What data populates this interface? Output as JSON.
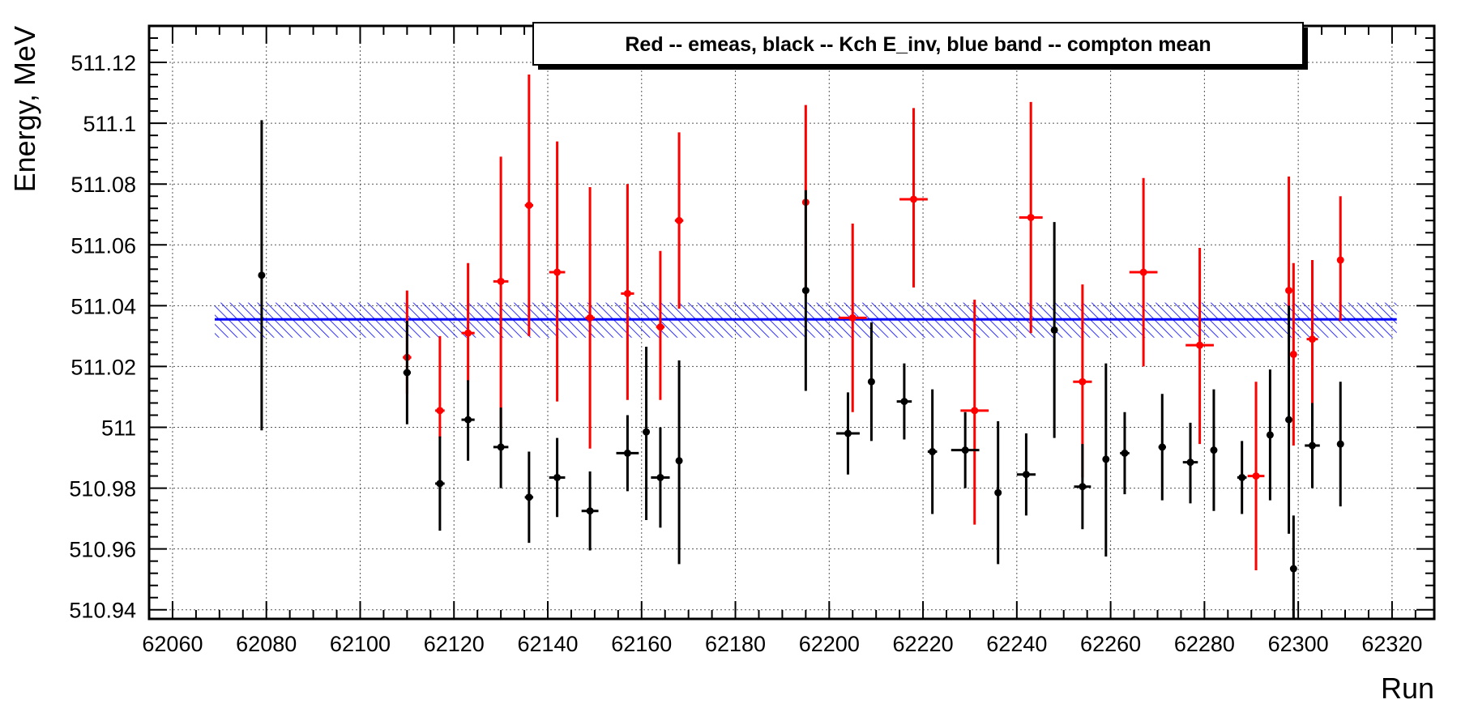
{
  "chart_data": {
    "type": "scatter",
    "xlabel": "Run",
    "ylabel": "Energy, MeV",
    "xlim": [
      62055,
      62329
    ],
    "ylim": [
      510.937,
      511.132
    ],
    "x_ticks": [
      "62060",
      "62080",
      "62100",
      "62120",
      "62140",
      "62160",
      "62180",
      "62200",
      "62220",
      "62240",
      "62260",
      "62280",
      "62300",
      "62320"
    ],
    "y_ticks": [
      "510.94",
      "510.96",
      "510.98",
      "511",
      "511.02",
      "511.04",
      "511.06",
      "511.08",
      "511.1",
      "511.12"
    ],
    "grid": true,
    "legend": {
      "text": "Red -- emeas, black -- Kch E_inv, blue band -- compton mean",
      "placement": "top-right"
    },
    "band": {
      "x_range": [
        62069,
        62321
      ],
      "mean": 511.0355,
      "low": 511.0295,
      "high": 511.041,
      "color": "#0000ff"
    },
    "series": [
      {
        "color": "#ff0000",
        "points": [
          {
            "x": 62110,
            "y": 511.023,
            "xerr": 0.9,
            "yerr_low": 0.012,
            "yerr_high": 0.022
          },
          {
            "x": 62117,
            "y": 511.0055,
            "xerr": 1.0,
            "yerr_low": 0.009,
            "yerr_high": 0.0245
          },
          {
            "x": 62123,
            "y": 511.031,
            "xerr": 1.4,
            "yerr_low": 0.016,
            "yerr_high": 0.023
          },
          {
            "x": 62130,
            "y": 511.048,
            "xerr": 1.6,
            "yerr_low": 0.048,
            "yerr_high": 0.041
          },
          {
            "x": 62136,
            "y": 511.073,
            "xerr": 0.9,
            "yerr_low": 0.043,
            "yerr_high": 0.043
          },
          {
            "x": 62142,
            "y": 511.051,
            "xerr": 1.7,
            "yerr_low": 0.0425,
            "yerr_high": 0.043
          },
          {
            "x": 62149,
            "y": 511.036,
            "xerr": 1.0,
            "yerr_low": 0.043,
            "yerr_high": 0.043
          },
          {
            "x": 62157,
            "y": 511.044,
            "xerr": 1.4,
            "yerr_low": 0.035,
            "yerr_high": 0.036
          },
          {
            "x": 62164,
            "y": 511.033,
            "xerr": 0.9,
            "yerr_low": 0.024,
            "yerr_high": 0.025
          },
          {
            "x": 62168,
            "y": 511.068,
            "xerr": 0.9,
            "yerr_low": 0.029,
            "yerr_high": 0.029
          },
          {
            "x": 62195,
            "y": 511.074,
            "xerr": 0.6,
            "yerr_low": 0.031,
            "yerr_high": 0.032
          },
          {
            "x": 62205,
            "y": 511.036,
            "xerr": 3.0,
            "yerr_low": 0.031,
            "yerr_high": 0.031
          },
          {
            "x": 62218,
            "y": 511.075,
            "xerr": 3.0,
            "yerr_low": 0.029,
            "yerr_high": 0.03
          },
          {
            "x": 62231,
            "y": 511.0055,
            "xerr": 3.0,
            "yerr_low": 0.0375,
            "yerr_high": 0.0365
          },
          {
            "x": 62243,
            "y": 511.069,
            "xerr": 2.5,
            "yerr_low": 0.038,
            "yerr_high": 0.038
          },
          {
            "x": 62254,
            "y": 511.015,
            "xerr": 2.0,
            "yerr_low": 0.0315,
            "yerr_high": 0.032
          },
          {
            "x": 62267,
            "y": 511.051,
            "xerr": 3.0,
            "yerr_low": 0.031,
            "yerr_high": 0.031
          },
          {
            "x": 62279,
            "y": 511.027,
            "xerr": 3.0,
            "yerr_low": 0.0325,
            "yerr_high": 0.032
          },
          {
            "x": 62291,
            "y": 510.984,
            "xerr": 1.8,
            "yerr_low": 0.031,
            "yerr_high": 0.031
          },
          {
            "x": 62298,
            "y": 511.045,
            "xerr": 0.3,
            "yerr_low": 0.017,
            "yerr_high": 0.0375
          },
          {
            "x": 62299,
            "y": 511.024,
            "xerr": 0.3,
            "yerr_low": 0.03,
            "yerr_high": 0.03
          },
          {
            "x": 62303,
            "y": 511.029,
            "xerr": 1.2,
            "yerr_low": 0.021,
            "yerr_high": 0.026
          },
          {
            "x": 62309,
            "y": 511.055,
            "xerr": 0.4,
            "yerr_low": 0.02,
            "yerr_high": 0.021
          }
        ]
      },
      {
        "color": "#000000",
        "points": [
          {
            "x": 62079,
            "y": 511.05,
            "xerr": 0.3,
            "yerr_low": 0.051,
            "yerr_high": 0.051
          },
          {
            "x": 62110,
            "y": 511.018,
            "xerr": 0.8,
            "yerr_low": 0.017,
            "yerr_high": 0.017
          },
          {
            "x": 62117,
            "y": 510.9815,
            "xerr": 1.0,
            "yerr_low": 0.0155,
            "yerr_high": 0.0155
          },
          {
            "x": 62123,
            "y": 511.0025,
            "xerr": 1.4,
            "yerr_low": 0.0135,
            "yerr_high": 0.013
          },
          {
            "x": 62130,
            "y": 510.9935,
            "xerr": 1.6,
            "yerr_low": 0.0135,
            "yerr_high": 0.013
          },
          {
            "x": 62136,
            "y": 510.977,
            "xerr": 0.9,
            "yerr_low": 0.015,
            "yerr_high": 0.015
          },
          {
            "x": 62142,
            "y": 510.9835,
            "xerr": 1.7,
            "yerr_low": 0.013,
            "yerr_high": 0.013
          },
          {
            "x": 62149,
            "y": 510.9725,
            "xerr": 1.8,
            "yerr_low": 0.013,
            "yerr_high": 0.013
          },
          {
            "x": 62157,
            "y": 510.9915,
            "xerr": 2.4,
            "yerr_low": 0.0125,
            "yerr_high": 0.0125
          },
          {
            "x": 62161,
            "y": 510.9985,
            "xerr": 0.3,
            "yerr_low": 0.029,
            "yerr_high": 0.028
          },
          {
            "x": 62164,
            "y": 510.9835,
            "xerr": 2.0,
            "yerr_low": 0.0165,
            "yerr_high": 0.0165
          },
          {
            "x": 62168,
            "y": 510.989,
            "xerr": 0.3,
            "yerr_low": 0.034,
            "yerr_high": 0.033
          },
          {
            "x": 62195,
            "y": 511.045,
            "xerr": 0.3,
            "yerr_low": 0.033,
            "yerr_high": 0.033
          },
          {
            "x": 62204,
            "y": 510.998,
            "xerr": 2.5,
            "yerr_low": 0.0135,
            "yerr_high": 0.0135
          },
          {
            "x": 62209,
            "y": 511.015,
            "xerr": 0.6,
            "yerr_low": 0.0195,
            "yerr_high": 0.0195
          },
          {
            "x": 62216,
            "y": 511.0085,
            "xerr": 1.6,
            "yerr_low": 0.0125,
            "yerr_high": 0.0125
          },
          {
            "x": 62222,
            "y": 510.992,
            "xerr": 1.0,
            "yerr_low": 0.0205,
            "yerr_high": 0.0205
          },
          {
            "x": 62229,
            "y": 510.9925,
            "xerr": 3.0,
            "yerr_low": 0.0125,
            "yerr_high": 0.0125
          },
          {
            "x": 62236,
            "y": 510.9785,
            "xerr": 0.3,
            "yerr_low": 0.0235,
            "yerr_high": 0.0235
          },
          {
            "x": 62242,
            "y": 510.9845,
            "xerr": 2.0,
            "yerr_low": 0.0135,
            "yerr_high": 0.0135
          },
          {
            "x": 62248,
            "y": 511.032,
            "xerr": 0.3,
            "yerr_low": 0.0355,
            "yerr_high": 0.0355
          },
          {
            "x": 62254,
            "y": 510.9805,
            "xerr": 1.8,
            "yerr_low": 0.014,
            "yerr_high": 0.014
          },
          {
            "x": 62259,
            "y": 510.9895,
            "xerr": 0.3,
            "yerr_low": 0.032,
            "yerr_high": 0.0315
          },
          {
            "x": 62263,
            "y": 510.9915,
            "xerr": 1.0,
            "yerr_low": 0.0135,
            "yerr_high": 0.0135
          },
          {
            "x": 62271,
            "y": 510.9935,
            "xerr": 0.8,
            "yerr_low": 0.0175,
            "yerr_high": 0.0175
          },
          {
            "x": 62277,
            "y": 510.9885,
            "xerr": 1.6,
            "yerr_low": 0.0135,
            "yerr_high": 0.013
          },
          {
            "x": 62282,
            "y": 510.9925,
            "xerr": 0.6,
            "yerr_low": 0.02,
            "yerr_high": 0.02
          },
          {
            "x": 62288,
            "y": 510.9835,
            "xerr": 1.0,
            "yerr_low": 0.012,
            "yerr_high": 0.012
          },
          {
            "x": 62294,
            "y": 510.9975,
            "xerr": 0.6,
            "yerr_low": 0.0215,
            "yerr_high": 0.0215
          },
          {
            "x": 62298,
            "y": 511.0025,
            "xerr": 0.3,
            "yerr_low": 0.0375,
            "yerr_high": 0.0375
          },
          {
            "x": 62299,
            "y": 510.9535,
            "xerr": 0.3,
            "yerr_low": 0.017,
            "yerr_high": 0.0175
          },
          {
            "x": 62303,
            "y": 510.994,
            "xerr": 1.6,
            "yerr_low": 0.014,
            "yerr_high": 0.014
          },
          {
            "x": 62309,
            "y": 510.9945,
            "xerr": 0.4,
            "yerr_low": 0.0205,
            "yerr_high": 0.0205
          }
        ]
      }
    ]
  }
}
